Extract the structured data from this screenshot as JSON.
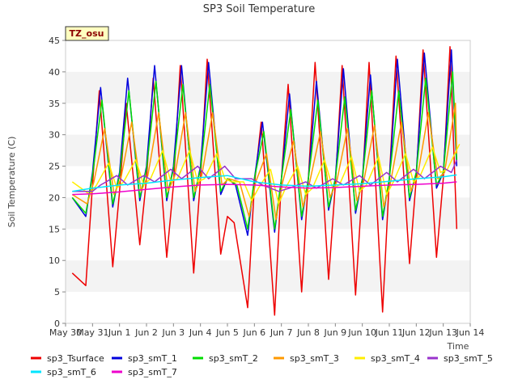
{
  "chart_data": {
    "type": "line",
    "title": "SP3 Soil Temperature",
    "xlabel": "Time",
    "ylabel": "Soil Temperature (C)",
    "station_label": "TZ_osu",
    "xlim": [
      0,
      15
    ],
    "ylim": [
      0,
      45
    ],
    "yticks": [
      0,
      5,
      10,
      15,
      20,
      25,
      30,
      35,
      40,
      45
    ],
    "xtick_labels": [
      "May 30",
      "May 31",
      "Jun 1",
      "Jun 2",
      "Jun 3",
      "Jun 4",
      "Jun 5",
      "Jun 6",
      "Jun 7",
      "Jun 8",
      "Jun 9",
      "Jun 10",
      "Jun 11",
      "Jun 12",
      "Jun 13",
      "Jun 14"
    ],
    "grid_bands": true,
    "legend_position": "bottom",
    "series": [
      {
        "name": "sp3_Tsurface",
        "color": "#ee0000",
        "x": [
          0.25,
          0.75,
          1.0,
          1.25,
          1.75,
          2.0,
          2.25,
          2.75,
          3.0,
          3.25,
          3.75,
          4.0,
          4.25,
          4.75,
          5.0,
          5.25,
          5.75,
          6.0,
          6.25,
          6.75,
          7.0,
          7.25,
          7.75,
          8.0,
          8.25,
          8.75,
          9.0,
          9.25,
          9.75,
          10.0,
          10.25,
          10.75,
          11.0,
          11.25,
          11.75,
          12.0,
          12.25,
          12.75,
          13.0,
          13.25,
          13.75,
          14.0,
          14.25,
          14.5
        ],
        "y": [
          8.0,
          6.0,
          22.0,
          37.0,
          9.0,
          21.0,
          35.0,
          12.5,
          23.0,
          39.0,
          10.5,
          22.0,
          41.0,
          8.0,
          23.0,
          42.0,
          11.0,
          17.0,
          16.0,
          2.5,
          22.0,
          32.0,
          1.3,
          23.0,
          38.0,
          5.0,
          23.0,
          41.5,
          7.0,
          22.0,
          41.0,
          4.5,
          22.0,
          41.5,
          1.8,
          23.0,
          42.5,
          9.5,
          23.0,
          43.5,
          10.5,
          23.0,
          44.0,
          15.0
        ]
      },
      {
        "name": "sp3_smT_1",
        "color": "#0000dd",
        "x": [
          0.25,
          0.75,
          1.0,
          1.3,
          1.75,
          2.0,
          2.3,
          2.75,
          3.0,
          3.3,
          3.75,
          4.0,
          4.3,
          4.75,
          5.0,
          5.3,
          5.75,
          6.0,
          6.3,
          6.75,
          7.0,
          7.3,
          7.75,
          8.0,
          8.3,
          8.75,
          9.0,
          9.3,
          9.75,
          10.0,
          10.3,
          10.75,
          11.0,
          11.3,
          11.75,
          12.0,
          12.3,
          12.75,
          13.0,
          13.3,
          13.75,
          14.0,
          14.3,
          14.5
        ],
        "y": [
          20.0,
          17.0,
          24.0,
          37.5,
          18.5,
          24.0,
          39.0,
          19.5,
          25.0,
          41.0,
          19.5,
          25.0,
          41.0,
          19.5,
          25.0,
          41.5,
          20.5,
          23.0,
          22.0,
          14.0,
          23.0,
          32.0,
          14.5,
          23.0,
          36.5,
          16.5,
          23.0,
          38.5,
          18.0,
          23.0,
          40.5,
          17.5,
          23.0,
          39.5,
          16.5,
          23.0,
          42.0,
          19.5,
          24.0,
          43.0,
          21.5,
          24.0,
          43.5,
          25.0
        ]
      },
      {
        "name": "sp3_smT_2",
        "color": "#00dd00",
        "x": [
          0.25,
          0.75,
          1.0,
          1.35,
          1.75,
          2.0,
          2.35,
          2.75,
          3.0,
          3.35,
          3.75,
          4.0,
          4.35,
          4.75,
          5.0,
          5.35,
          5.75,
          6.0,
          6.35,
          6.75,
          7.0,
          7.35,
          7.75,
          8.0,
          8.35,
          8.75,
          9.0,
          9.35,
          9.75,
          10.0,
          10.35,
          10.75,
          11.0,
          11.35,
          11.75,
          12.0,
          12.35,
          12.75,
          13.0,
          13.35,
          13.75,
          14.0,
          14.35,
          14.5
        ],
        "y": [
          20.0,
          17.5,
          23.5,
          35.5,
          19.0,
          23.5,
          37.0,
          20.0,
          24.5,
          38.5,
          20.0,
          24.5,
          38.0,
          20.0,
          24.5,
          38.0,
          21.0,
          23.0,
          22.0,
          15.0,
          23.0,
          30.5,
          15.0,
          23.0,
          34.0,
          17.0,
          23.0,
          35.5,
          18.5,
          23.0,
          36.0,
          18.0,
          23.0,
          37.0,
          17.0,
          23.0,
          37.0,
          20.0,
          24.0,
          39.0,
          22.0,
          24.0,
          40.0,
          26.0
        ]
      },
      {
        "name": "sp3_smT_3",
        "color": "#ff9900",
        "x": [
          0.25,
          0.8,
          1.05,
          1.45,
          1.8,
          2.05,
          2.45,
          2.8,
          3.05,
          3.45,
          3.8,
          4.05,
          4.45,
          4.8,
          5.05,
          5.45,
          5.8,
          6.05,
          6.45,
          6.8,
          7.05,
          7.45,
          7.8,
          8.05,
          8.45,
          8.8,
          9.05,
          9.45,
          9.8,
          10.05,
          10.45,
          10.8,
          11.05,
          11.45,
          11.8,
          12.05,
          12.45,
          12.8,
          13.05,
          13.45,
          13.8,
          14.05,
          14.45,
          14.5
        ],
        "y": [
          20.5,
          19.0,
          22.5,
          31.0,
          20.5,
          23.0,
          32.0,
          21.0,
          23.5,
          33.5,
          21.0,
          23.5,
          33.5,
          21.0,
          23.5,
          33.5,
          22.0,
          23.0,
          22.5,
          17.0,
          22.5,
          27.0,
          16.5,
          22.5,
          29.0,
          18.5,
          22.5,
          30.5,
          20.0,
          22.5,
          31.0,
          19.5,
          22.5,
          31.5,
          18.5,
          22.5,
          32.0,
          21.0,
          23.5,
          33.5,
          23.0,
          24.0,
          35.0,
          27.0
        ]
      },
      {
        "name": "sp3_smT_4",
        "color": "#ffee00",
        "x": [
          0.25,
          0.9,
          1.15,
          1.6,
          1.9,
          2.15,
          2.6,
          2.9,
          3.15,
          3.6,
          3.9,
          4.15,
          4.6,
          4.9,
          5.15,
          5.6,
          5.9,
          6.15,
          6.6,
          6.9,
          7.15,
          7.6,
          7.9,
          8.15,
          8.6,
          8.9,
          9.15,
          9.6,
          9.9,
          10.15,
          10.6,
          10.9,
          11.15,
          11.6,
          11.9,
          12.15,
          12.6,
          12.9,
          13.15,
          13.6,
          13.9,
          14.15,
          14.6
        ],
        "y": [
          22.5,
          20.5,
          22.0,
          25.5,
          21.5,
          22.5,
          26.0,
          22.0,
          23.0,
          27.5,
          22.5,
          23.0,
          27.5,
          22.5,
          23.0,
          27.0,
          23.0,
          22.5,
          22.5,
          19.5,
          21.5,
          24.5,
          19.0,
          21.5,
          25.0,
          20.5,
          21.5,
          26.0,
          21.5,
          22.0,
          26.5,
          21.0,
          22.0,
          26.5,
          20.5,
          22.5,
          27.0,
          22.5,
          23.5,
          28.0,
          24.0,
          24.5,
          28.5
        ]
      },
      {
        "name": "sp3_smT_5",
        "color": "#9933cc",
        "x": [
          0.25,
          1.0,
          1.3,
          1.9,
          2.3,
          2.9,
          3.3,
          3.9,
          4.3,
          4.9,
          5.3,
          5.9,
          6.3,
          6.9,
          7.3,
          7.9,
          8.3,
          8.9,
          9.3,
          9.9,
          10.3,
          10.9,
          11.3,
          11.9,
          12.3,
          12.9,
          13.3,
          13.9,
          14.3,
          14.5
        ],
        "y": [
          21.0,
          21.0,
          22.0,
          23.5,
          22.0,
          23.5,
          22.5,
          24.5,
          23.0,
          25.0,
          23.0,
          25.0,
          23.0,
          23.0,
          22.0,
          21.0,
          21.5,
          22.5,
          21.5,
          23.0,
          22.0,
          23.5,
          22.0,
          24.0,
          22.5,
          24.5,
          23.0,
          25.0,
          24.0,
          26.0
        ]
      },
      {
        "name": "sp3_smT_6",
        "color": "#00e5ff",
        "x": [
          0.25,
          1.0,
          2.0,
          3.0,
          4.0,
          5.0,
          6.0,
          7.0,
          8.0,
          9.0,
          10.0,
          11.0,
          12.0,
          13.0,
          14.0,
          14.5
        ],
        "y": [
          21.0,
          21.5,
          22.0,
          22.3,
          22.8,
          23.2,
          23.5,
          22.5,
          22.0,
          21.8,
          22.0,
          22.2,
          22.6,
          23.0,
          23.3,
          23.6
        ]
      },
      {
        "name": "sp3_smT_7",
        "color": "#ee00cc",
        "x": [
          0.25,
          1.0,
          2.0,
          3.0,
          4.0,
          5.0,
          6.0,
          7.0,
          8.0,
          9.0,
          10.0,
          11.0,
          12.0,
          13.0,
          14.0,
          14.5
        ],
        "y": [
          20.5,
          20.6,
          20.9,
          21.3,
          21.7,
          22.0,
          22.1,
          22.0,
          21.7,
          21.5,
          21.6,
          21.8,
          22.0,
          22.1,
          22.3,
          22.5
        ]
      }
    ]
  }
}
